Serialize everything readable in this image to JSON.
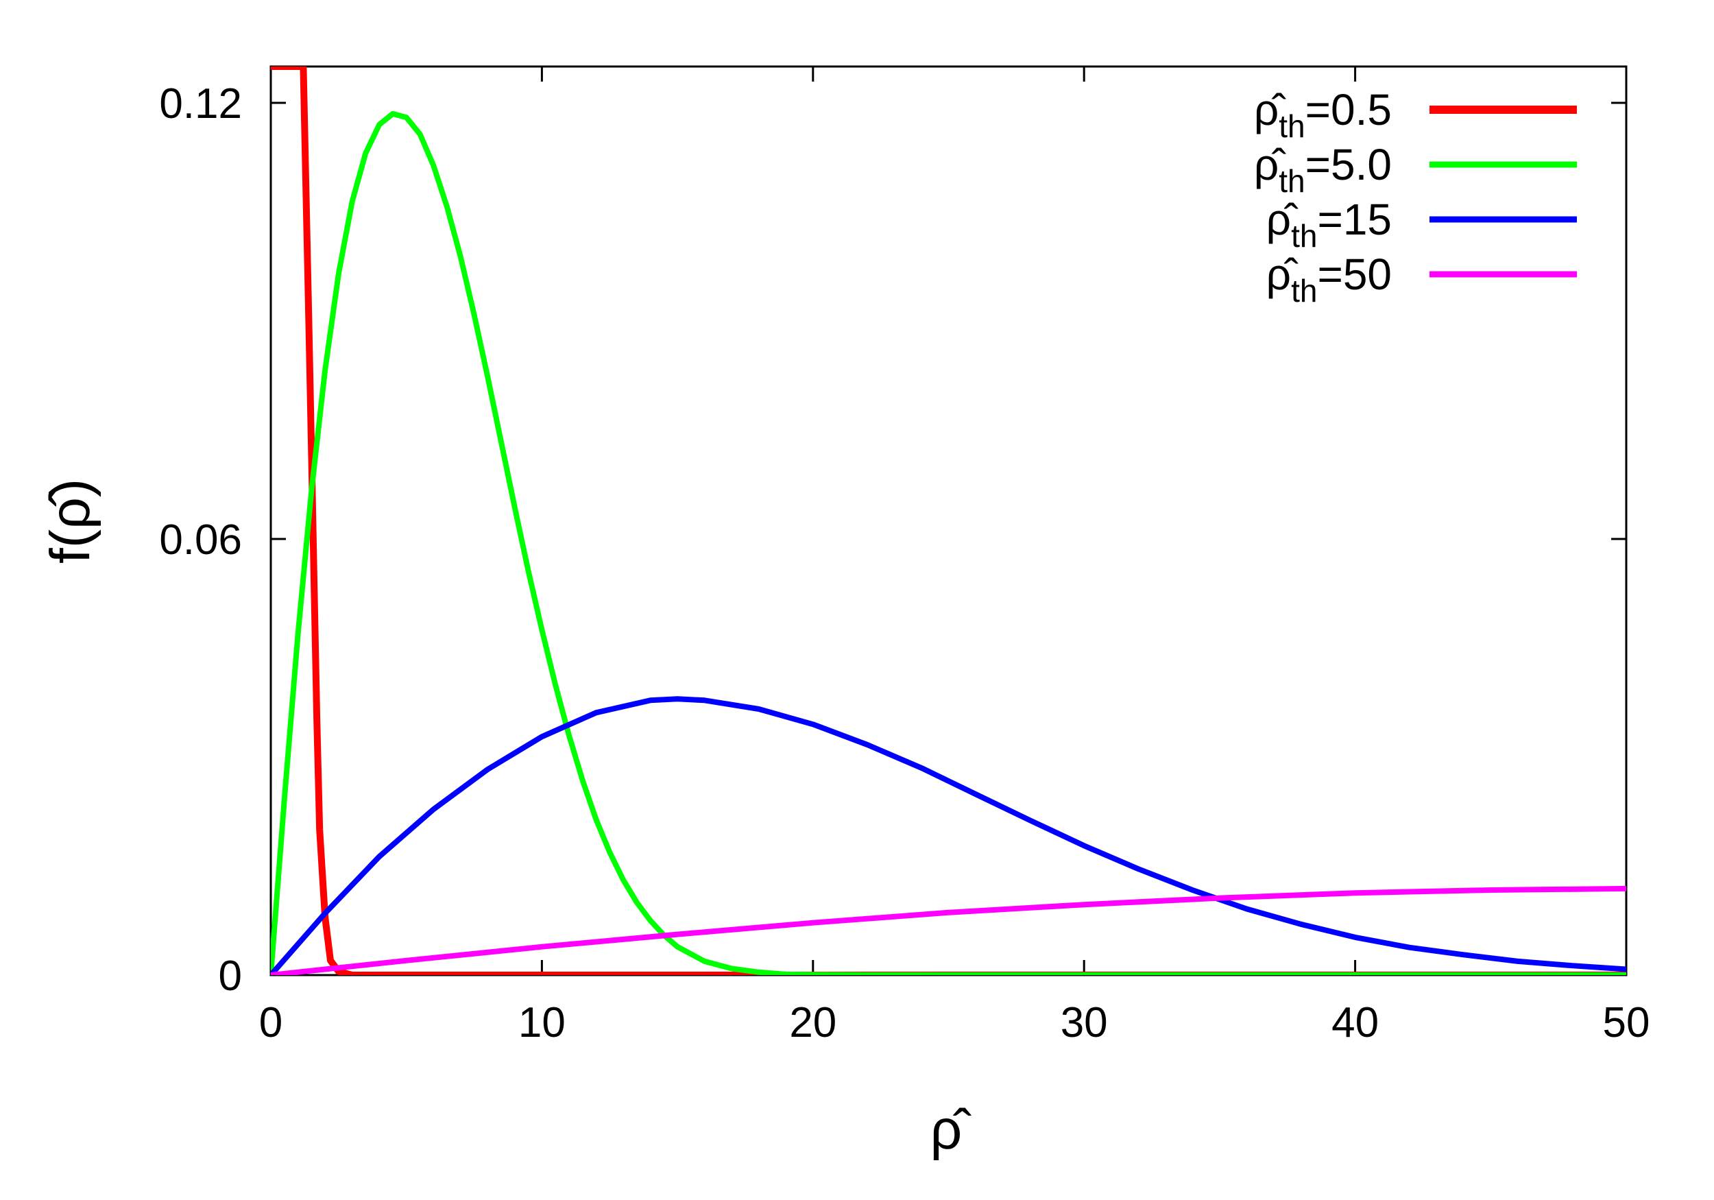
{
  "chart_data": {
    "type": "line",
    "title": "",
    "xlabel": "ρ̂",
    "ylabel": "f(ρ̂)",
    "xlim": [
      0,
      50
    ],
    "ylim": [
      0,
      0.125
    ],
    "xticks": [
      0,
      10,
      20,
      30,
      40,
      50
    ],
    "xtick_labels": [
      "0",
      "10",
      "20",
      "30",
      "40",
      "50"
    ],
    "yticks": [
      0,
      0.06,
      0.12
    ],
    "ytick_labels": [
      "0",
      "0.06",
      "0.12"
    ],
    "grid": false,
    "legend_position": "top-right",
    "series": [
      {
        "name": "ρ̂th=0.5",
        "legend_symbol": "ρ̂",
        "legend_sub": "th",
        "legend_value": "=0.5",
        "color": "#ff0000",
        "x": [
          0,
          0.05,
          0.1,
          0.2,
          0.3,
          0.5,
          0.8,
          1.0,
          1.2,
          1.4,
          1.5,
          1.6,
          1.7,
          1.8,
          2.0,
          2.2,
          2.5,
          3,
          5,
          10,
          20,
          30,
          40,
          50
        ],
        "y": [
          0.125,
          0.125,
          0.125,
          0.125,
          0.125,
          0.125,
          0.125,
          0.125,
          0.125,
          0.09,
          0.072,
          0.053,
          0.035,
          0.02,
          0.008,
          0.002,
          0.0005,
          0,
          0,
          0,
          0,
          0,
          0,
          0
        ]
      },
      {
        "name": "ρ̂th=5.0",
        "legend_symbol": "ρ̂",
        "legend_sub": "th",
        "legend_value": "=5.0",
        "color": "#00ff00",
        "x": [
          0,
          0.5,
          1,
          1.5,
          2,
          2.5,
          3,
          3.5,
          4,
          4.5,
          5,
          5.5,
          6,
          6.5,
          7,
          7.5,
          8,
          8.5,
          9,
          9.5,
          10,
          10.5,
          11,
          11.5,
          12,
          12.5,
          13,
          13.5,
          14,
          14.5,
          15,
          16,
          17,
          18,
          19,
          20,
          22,
          25,
          30,
          40,
          50
        ],
        "y": [
          0,
          0.0242,
          0.0468,
          0.0666,
          0.0832,
          0.0965,
          0.1064,
          0.1131,
          0.117,
          0.1185,
          0.118,
          0.1157,
          0.1114,
          0.1057,
          0.0988,
          0.0909,
          0.0823,
          0.0733,
          0.0643,
          0.0556,
          0.0475,
          0.0399,
          0.033,
          0.0268,
          0.0214,
          0.0169,
          0.0131,
          0.01,
          0.0075,
          0.0055,
          0.0039,
          0.0019,
          0.0009,
          0.0004,
          0.0001,
          6e-05,
          1e-05,
          0,
          0,
          0,
          0
        ]
      },
      {
        "name": "ρ̂th=15",
        "legend_symbol": "ρ̂",
        "legend_sub": "th",
        "legend_value": "=15",
        "color": "#0000ff",
        "x": [
          0,
          2,
          4,
          6,
          8,
          10,
          12,
          14,
          15,
          16,
          18,
          20,
          22,
          24,
          26,
          28,
          30,
          32,
          34,
          36,
          38,
          40,
          42,
          44,
          46,
          48,
          50
        ],
        "y": [
          0,
          0.0085,
          0.0163,
          0.0228,
          0.0283,
          0.0328,
          0.0361,
          0.0378,
          0.038,
          0.0378,
          0.0366,
          0.0345,
          0.0317,
          0.0285,
          0.0249,
          0.0213,
          0.0178,
          0.0146,
          0.0117,
          0.0091,
          0.007,
          0.0052,
          0.0038,
          0.0028,
          0.0019,
          0.0013,
          0.0008
        ]
      },
      {
        "name": "ρ̂th=50",
        "legend_symbol": "ρ̂",
        "legend_sub": "th",
        "legend_value": "=50",
        "color": "#ff00ff",
        "x": [
          0,
          2,
          5,
          10,
          15,
          20,
          25,
          30,
          35,
          40,
          45,
          50
        ],
        "y": [
          0,
          0.0008,
          0.002,
          0.0039,
          0.0056,
          0.0072,
          0.0086,
          0.0097,
          0.0106,
          0.0113,
          0.0117,
          0.0119
        ]
      }
    ]
  }
}
